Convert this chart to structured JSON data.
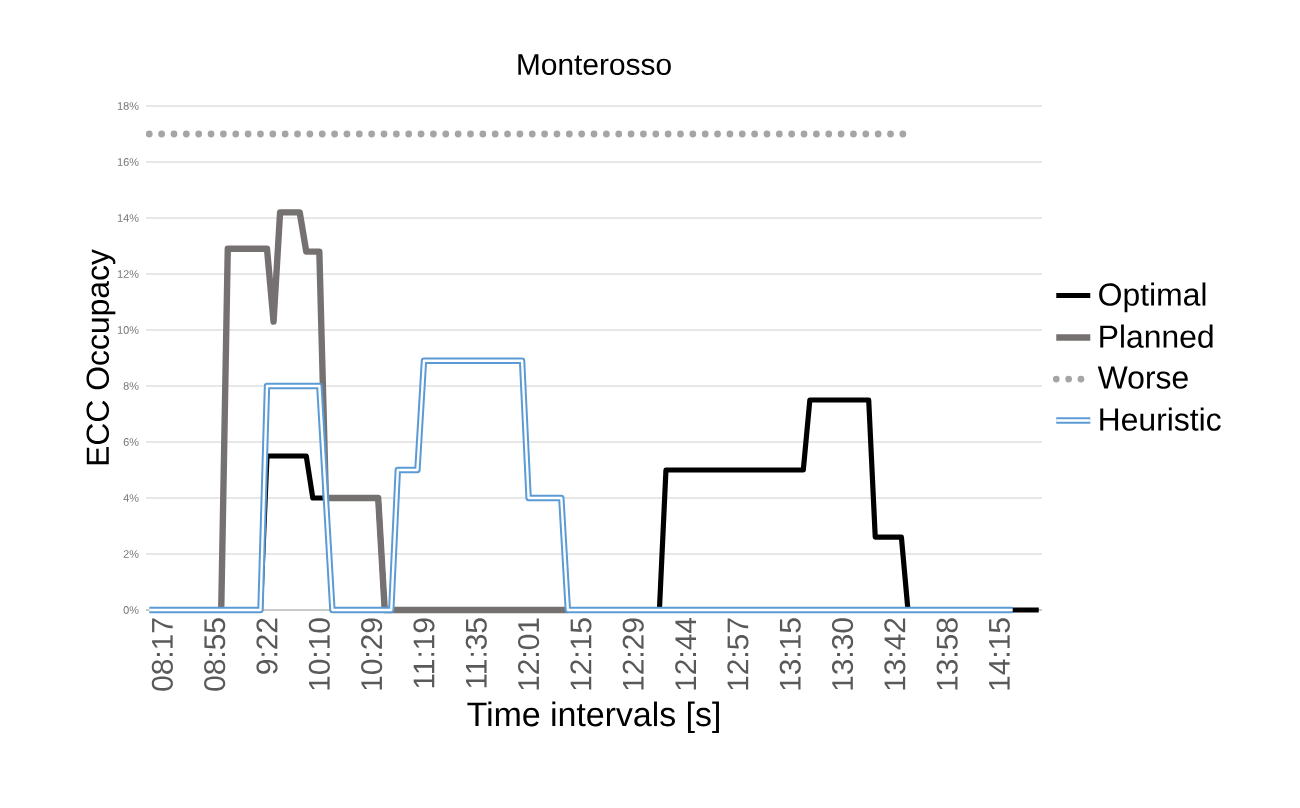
{
  "chart_data": {
    "type": "line",
    "title": "Monterosso",
    "xlabel": "Time intervals [s]",
    "ylabel": "ECC Occupacy",
    "categories": [
      null,
      null,
      "08:17",
      null,
      null,
      null,
      null,
      null,
      null,
      null,
      "08:55",
      null,
      null,
      null,
      null,
      null,
      null,
      null,
      "9:22",
      null,
      null,
      null,
      null,
      null,
      null,
      null,
      "10:10",
      null,
      null,
      null,
      null,
      null,
      null,
      null,
      "10:29",
      null,
      null,
      null,
      null,
      null,
      null,
      null,
      "11:19",
      null,
      null,
      null,
      null,
      null,
      null,
      null,
      "11:35",
      null,
      null,
      null,
      null,
      null,
      null,
      null,
      "12:01",
      null,
      null,
      null,
      null,
      null,
      null,
      null,
      "12:15",
      null,
      null,
      null,
      null,
      null,
      null,
      null,
      "12:29",
      null,
      null,
      null,
      null,
      null,
      null,
      null,
      "12:44",
      null,
      null,
      null,
      null,
      null,
      null,
      null,
      "12:57",
      null,
      null,
      null,
      null,
      null,
      null,
      null,
      "13:15",
      null,
      null,
      null,
      null,
      null,
      null,
      null,
      "13:30",
      null,
      null,
      null,
      null,
      null,
      null,
      null,
      "13:42",
      null,
      null,
      null,
      null,
      null,
      null,
      null,
      "13:58",
      null,
      null,
      null,
      null,
      null,
      null,
      null,
      "14:15",
      null,
      null,
      null,
      null,
      null,
      null
    ],
    "series": [
      {
        "name": "Optimal",
        "color": "#000000",
        "values": [
          null,
          null,
          null,
          null,
          null,
          null,
          null,
          null,
          null,
          null,
          null,
          null,
          null,
          null,
          null,
          null,
          null,
          0,
          5.5,
          5.5,
          5.5,
          5.5,
          5.5,
          5.5,
          5.5,
          4.0,
          4.0,
          4.0,
          4.0,
          4.0,
          4.0,
          4.0,
          4.0,
          4.0,
          4.0,
          4.0,
          0,
          null,
          null,
          null,
          null,
          null,
          null,
          null,
          null,
          null,
          null,
          null,
          null,
          null,
          null,
          null,
          null,
          null,
          null,
          null,
          null,
          null,
          null,
          null,
          null,
          null,
          null,
          null,
          null,
          null,
          null,
          null,
          null,
          null,
          null,
          null,
          null,
          null,
          null,
          null,
          null,
          null,
          0,
          5.0,
          5.0,
          5.0,
          5.0,
          5.0,
          5.0,
          5.0,
          5.0,
          5.0,
          5.0,
          5.0,
          5.0,
          5.0,
          5.0,
          5.0,
          5.0,
          5.0,
          5.0,
          5.0,
          5.0,
          5.0,
          5.0,
          7.5,
          7.5,
          7.5,
          7.5,
          7.5,
          7.5,
          7.5,
          7.5,
          7.5,
          7.5,
          2.6,
          2.6,
          2.6,
          2.6,
          2.6,
          0,
          null,
          null,
          null,
          null,
          null,
          0,
          0,
          0,
          0,
          0,
          0,
          0,
          0,
          0,
          0,
          0,
          0,
          0,
          0,
          0
        ]
      },
      {
        "name": "Planned",
        "color": "#767171",
        "values": [
          null,
          null,
          null,
          null,
          null,
          null,
          null,
          null,
          null,
          null,
          null,
          0,
          12.9,
          12.9,
          12.9,
          12.9,
          12.9,
          12.9,
          12.9,
          10.3,
          14.2,
          14.2,
          14.2,
          14.2,
          12.8,
          12.8,
          12.8,
          4.0,
          4.0,
          4.0,
          4.0,
          4.0,
          4.0,
          4.0,
          4.0,
          4.0,
          0,
          0,
          0,
          0,
          0,
          0,
          0,
          0,
          0,
          0,
          0,
          0,
          0,
          0,
          0,
          0,
          0,
          0,
          0,
          0,
          0,
          0,
          0,
          0,
          0,
          0,
          0,
          0,
          0,
          null,
          null,
          null,
          null,
          null,
          null,
          null,
          null,
          null,
          null,
          null,
          null,
          null,
          null,
          null,
          null,
          null,
          null,
          null,
          null,
          null,
          null,
          null,
          null,
          null,
          null,
          null,
          null,
          null,
          null,
          null,
          null,
          null,
          null,
          null,
          null,
          null,
          null,
          null,
          null,
          null,
          null,
          null,
          null,
          null,
          null,
          null,
          null,
          null,
          null,
          null,
          null,
          null,
          null,
          null,
          null,
          null,
          null,
          null,
          null,
          null,
          null,
          null,
          null,
          null,
          null,
          null,
          null,
          null,
          null,
          null,
          null
        ]
      },
      {
        "name": "Worse",
        "color": "#a5a5a5",
        "line_style": "dotted",
        "values": [
          17.0,
          17.0,
          17.0,
          17.0,
          17.0,
          17.0,
          17.0,
          17.0,
          17.0,
          17.0,
          17.0,
          17.0,
          17.0,
          17.0,
          17.0,
          17.0,
          17.0,
          17.0,
          17.0,
          17.0,
          17.0,
          17.0,
          17.0,
          17.0,
          17.0,
          17.0,
          17.0,
          17.0,
          17.0,
          17.0,
          17.0,
          17.0,
          17.0,
          17.0,
          17.0,
          17.0,
          17.0,
          17.0,
          17.0,
          17.0,
          17.0,
          17.0,
          17.0,
          17.0,
          17.0,
          17.0,
          17.0,
          17.0,
          17.0,
          17.0,
          17.0,
          17.0,
          17.0,
          17.0,
          17.0,
          17.0,
          17.0,
          17.0,
          17.0,
          17.0,
          17.0,
          17.0,
          17.0,
          17.0,
          17.0,
          17.0,
          17.0,
          17.0,
          17.0,
          17.0,
          17.0,
          17.0,
          17.0,
          17.0,
          17.0,
          17.0,
          17.0,
          17.0,
          17.0,
          17.0,
          17.0,
          17.0,
          17.0,
          17.0,
          17.0,
          17.0,
          17.0,
          17.0,
          17.0,
          17.0,
          17.0,
          17.0,
          17.0,
          17.0,
          17.0,
          17.0,
          17.0,
          17.0,
          17.0,
          17.0,
          17.0,
          17.0,
          17.0,
          17.0,
          17.0,
          17.0,
          17.0,
          17.0,
          17.0,
          17.0,
          17.0,
          17.0,
          17.0,
          17.0,
          17.0,
          17.0,
          17.0,
          null,
          null,
          null,
          null,
          null,
          null,
          null,
          null,
          null,
          null,
          null,
          null,
          null,
          null,
          null,
          null,
          null,
          null,
          null,
          null
        ]
      },
      {
        "name": "Heuristic",
        "color": "#5b9bd5",
        "values": [
          0,
          0,
          0,
          0,
          0,
          0,
          0,
          0,
          0,
          0,
          0,
          0,
          0,
          0,
          0,
          0,
          0,
          0,
          8.0,
          8.0,
          8.0,
          8.0,
          8.0,
          8.0,
          8.0,
          8.0,
          8.0,
          4.0,
          0,
          0,
          0,
          0,
          0,
          0,
          0,
          0,
          0,
          0,
          5.0,
          5.0,
          5.0,
          5.0,
          8.9,
          8.9,
          8.9,
          8.9,
          8.9,
          8.9,
          8.9,
          8.9,
          8.9,
          8.9,
          8.9,
          8.9,
          8.9,
          8.9,
          8.9,
          8.9,
          4.0,
          4.0,
          4.0,
          4.0,
          4.0,
          4.0,
          0,
          0,
          0,
          0,
          0,
          0,
          0,
          0,
          0,
          0,
          0,
          0,
          0,
          0,
          0,
          0,
          0,
          0,
          0,
          0,
          0,
          0,
          0,
          0,
          0,
          0,
          0,
          0,
          0,
          0,
          0,
          0,
          0,
          0,
          0,
          0,
          0,
          0,
          0,
          0,
          0,
          0,
          0,
          0,
          0,
          0,
          0,
          0,
          0,
          0,
          0,
          0,
          0,
          0,
          0,
          0,
          0,
          0,
          0,
          0,
          0,
          0,
          0,
          0,
          0,
          0,
          0,
          0,
          0,
          null,
          null,
          null,
          null
        ]
      }
    ],
    "ylim": [
      0,
      18
    ],
    "yticks": [
      {
        "value": 0,
        "label": "0%"
      },
      {
        "value": 2,
        "label": "2%"
      },
      {
        "value": 4,
        "label": "4%"
      },
      {
        "value": 6,
        "label": "6%"
      },
      {
        "value": 8,
        "label": "8%"
      },
      {
        "value": 10,
        "label": "10%"
      },
      {
        "value": 12,
        "label": "12%"
      },
      {
        "value": 14,
        "label": "14%"
      },
      {
        "value": 16,
        "label": "16%"
      },
      {
        "value": 18,
        "label": "18%"
      }
    ],
    "grid": "y",
    "legend": "right",
    "marker": "none"
  }
}
